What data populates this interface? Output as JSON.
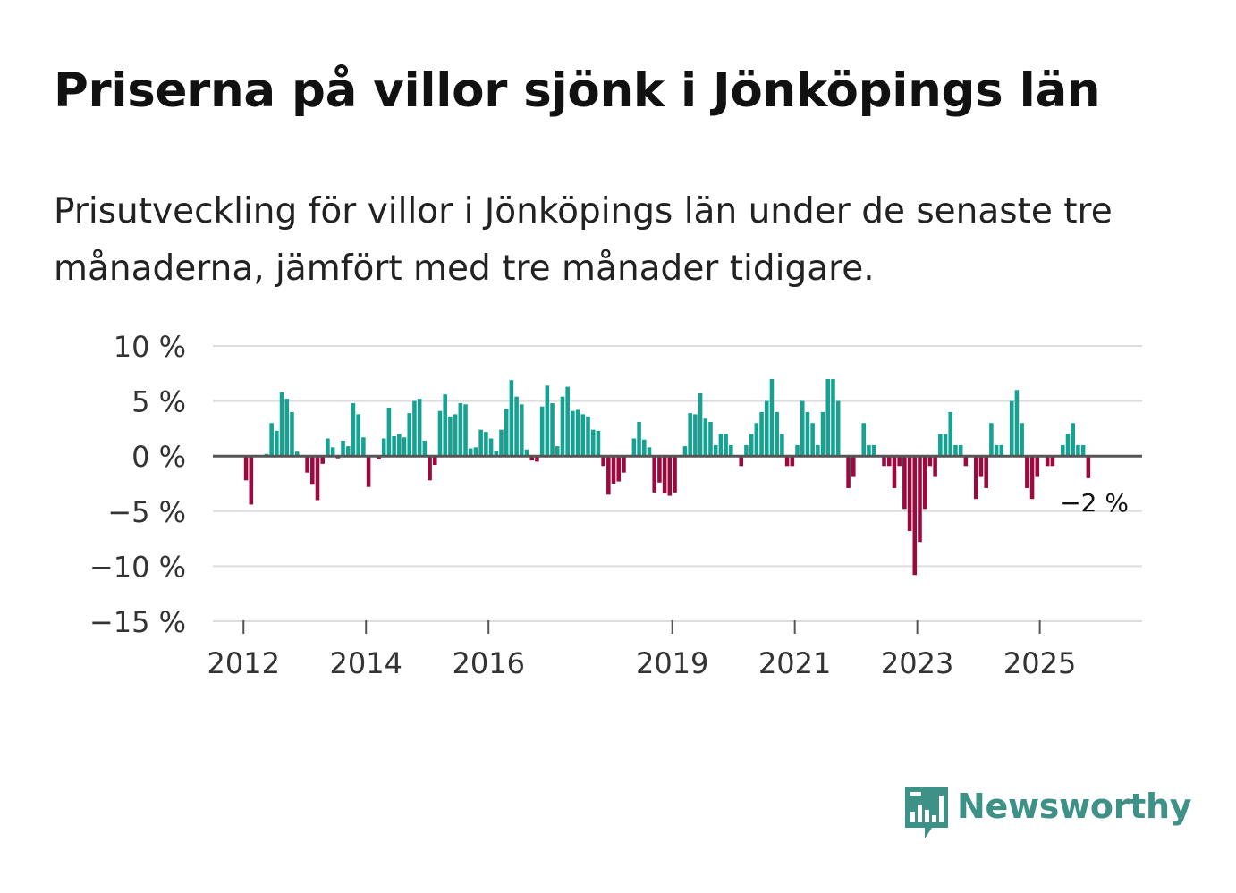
{
  "header": {
    "title": "Priserna på villor sjönk i Jönköpings län",
    "subtitle": "Prisutveckling för villor i Jönköpings län under de senaste tre månaderna, jämfört med tre månader tidigare."
  },
  "brand": {
    "name": "Newsworthy"
  },
  "colors": {
    "positive": "#16a193",
    "negative": "#9a0a3f",
    "zero_line": "#555555",
    "grid": "#dddddd",
    "brand": "#3d9186"
  },
  "chart_data": {
    "type": "bar",
    "title": "Priserna på villor sjönk i Jönköpings län",
    "xlabel": "",
    "ylabel": "",
    "ylim": [
      -15,
      10
    ],
    "yticks": [
      10,
      5,
      0,
      -5,
      -10,
      -15
    ],
    "ytick_labels": [
      "10 %",
      "5 %",
      "0 %",
      "−5 %",
      "−10 %",
      "−15 %"
    ],
    "x_start": 2011.5,
    "x_end": 2026.67,
    "xticks": [
      2012,
      2014,
      2016,
      2019,
      2021,
      2023,
      2025
    ],
    "xtick_labels": [
      "2012",
      "2014",
      "2016",
      "2019",
      "2021",
      "2023",
      "2025"
    ],
    "bar_start": {
      "year": 2011,
      "month": 1
    },
    "annotation": {
      "text": "−2 %",
      "value": -2
    },
    "values": [
      0,
      0,
      0,
      0,
      0,
      0,
      0,
      0,
      0,
      0,
      0,
      0,
      -2.2,
      -4.4,
      0,
      0,
      0.2,
      3,
      2.3,
      5.8,
      5.2,
      4,
      0.4,
      0.1,
      -1.5,
      -2.6,
      -4,
      -0.7,
      1.6,
      0.8,
      -0.2,
      1.4,
      0.9,
      4.8,
      3.8,
      1.7,
      -2.8,
      0,
      -0.3,
      1.6,
      4.4,
      1.8,
      2,
      1.7,
      3.9,
      5,
      5.2,
      1.4,
      -2.2,
      -0.8,
      4.1,
      5.6,
      3.6,
      3.8,
      4.8,
      4.7,
      0.7,
      0.8,
      2.4,
      2.2,
      1.6,
      0.5,
      2.4,
      4.3,
      6.9,
      5.4,
      4.7,
      0.6,
      -0.4,
      -0.5,
      4.5,
      6.4,
      4.8,
      0.9,
      5.4,
      6.3,
      4.1,
      4.2,
      3.8,
      3.6,
      2.4,
      2.3,
      -0.9,
      -3.5,
      -2.5,
      -2.3,
      -1.5,
      0,
      1.6,
      3.1,
      1.5,
      0.8,
      -3.3,
      -2.4,
      -3.4,
      -3.6,
      -3.3,
      0.1,
      0.9,
      3.9,
      3.8,
      5.7,
      3.4,
      3.1,
      1,
      2,
      2,
      1,
      0,
      -0.9,
      1,
      2,
      3,
      4,
      5,
      7,
      4,
      2,
      -0.9,
      -0.9,
      1,
      5,
      4,
      3,
      1,
      4,
      7,
      7,
      5,
      0,
      -2.9,
      -1.9,
      0,
      3,
      1,
      1,
      0,
      -0.9,
      -0.9,
      -2.9,
      -0.9,
      -4.8,
      -6.8,
      -10.8,
      -7.8,
      -4.8,
      -0.9,
      -1.9,
      2,
      2,
      4,
      1,
      1,
      -0.9,
      0,
      -3.9,
      -1.9,
      -2.9,
      3,
      1,
      1,
      0,
      5,
      6,
      3,
      -2.9,
      -3.9,
      -1.9,
      0,
      -0.9,
      -0.9,
      0,
      1,
      2,
      3,
      1,
      1,
      -2
    ]
  }
}
